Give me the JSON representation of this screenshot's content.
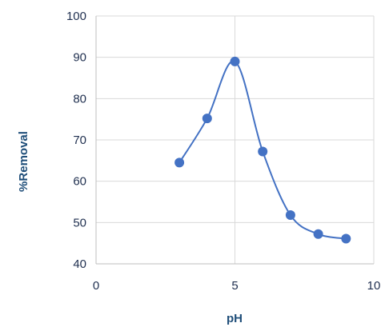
{
  "chart_data": {
    "type": "scatter",
    "xlabel": "pH",
    "ylabel": "%Removal",
    "xlim": [
      0,
      10
    ],
    "ylim": [
      40,
      100
    ],
    "x_ticks": [
      0,
      5,
      10
    ],
    "y_ticks": [
      40,
      50,
      60,
      70,
      80,
      90,
      100
    ],
    "grid": true,
    "smooth_line": true,
    "series": [
      {
        "color": "#4472c4",
        "points": [
          {
            "x": 3,
            "y": 64.5
          },
          {
            "x": 4,
            "y": 75.2
          },
          {
            "x": 5,
            "y": 89.0
          },
          {
            "x": 6,
            "y": 67.2
          },
          {
            "x": 7,
            "y": 51.8
          },
          {
            "x": 8,
            "y": 47.2
          },
          {
            "x": 9,
            "y": 46.1
          }
        ]
      }
    ]
  }
}
